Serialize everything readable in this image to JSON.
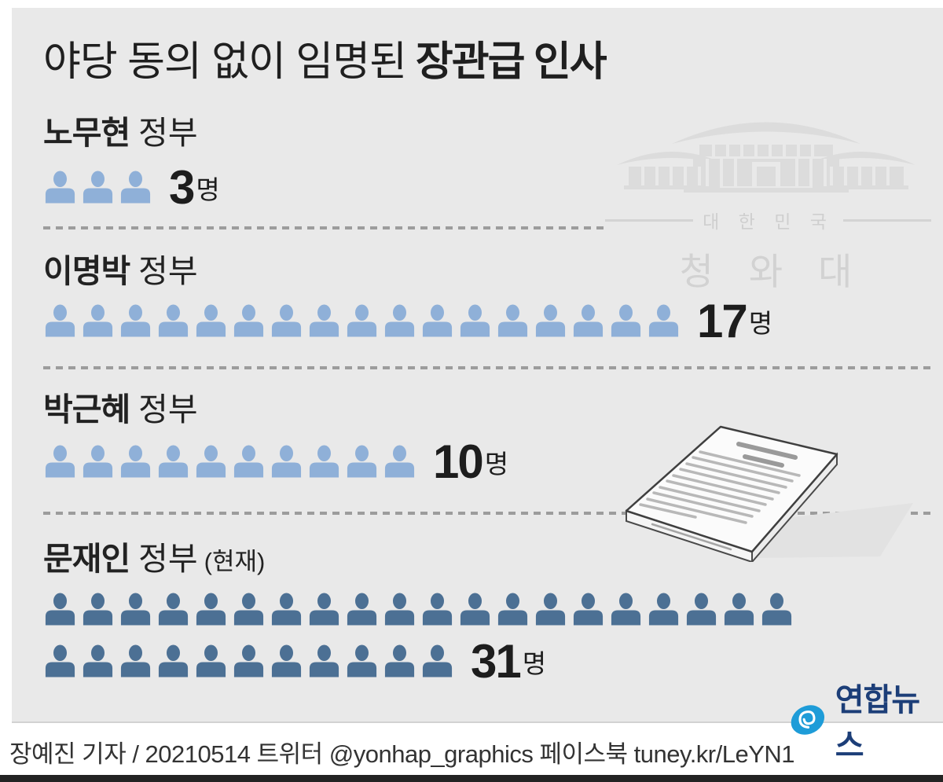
{
  "title": {
    "prefix": "야당 동의 없이 임명된",
    "emphasis": "장관급 인사"
  },
  "sections": [
    {
      "leader": "노무현",
      "gov": "정부",
      "note": "",
      "count": "3",
      "unit": "명",
      "color": "#8FB0D8",
      "rows": [
        3
      ]
    },
    {
      "leader": "이명박",
      "gov": "정부",
      "note": "",
      "count": "17",
      "unit": "명",
      "color": "#8FB0D8",
      "rows": [
        17
      ]
    },
    {
      "leader": "박근혜",
      "gov": "정부",
      "note": "",
      "count": "10",
      "unit": "명",
      "color": "#8FB0D8",
      "rows": [
        10
      ]
    },
    {
      "leader": "문재인",
      "gov": "정부",
      "note": "(현재)",
      "count": "31",
      "unit": "명",
      "color": "#4C7094",
      "rows": [
        20,
        11
      ]
    }
  ],
  "watermark": {
    "country": "대 한 민 국",
    "name": "청 와 대"
  },
  "logo": {
    "text": "연합뉴스",
    "brand_blue": "#1E9CD8",
    "brand_navy": "#1C3E78"
  },
  "footer": {
    "credit": "장예진 기자 / 20210514 트위터 @yonhap_graphics  페이스북 tuney.kr/LeYN1"
  },
  "colors": {
    "background": "#E9E9E9",
    "icon_light": "#8FB0D8",
    "icon_dark": "#4C7094",
    "divider": "#9C9C9C",
    "text": "#1F1F1F"
  },
  "chart_data": {
    "type": "bar",
    "style": "pictogram",
    "title": "야당 동의 없이 임명된 장관급 인사",
    "categories": [
      "노무현 정부",
      "이명박 정부",
      "박근혜 정부",
      "문재인 정부 (현재)"
    ],
    "values": [
      3,
      17,
      10,
      31
    ],
    "unit": "명",
    "icon": "person",
    "colors": [
      "#8FB0D8",
      "#8FB0D8",
      "#8FB0D8",
      "#4C7094"
    ],
    "legend": "none",
    "source": "연합뉴스"
  }
}
